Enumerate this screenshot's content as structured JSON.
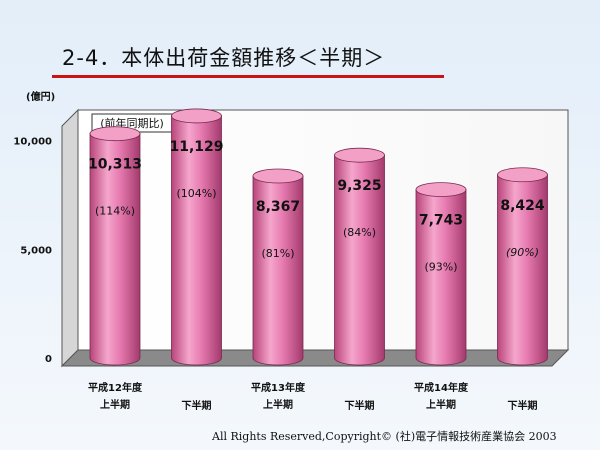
{
  "title": "2-4．本体出荷金額推移＜半期＞",
  "footer": "All Rights Reserved,Copyright© (社)電子情報技術産業協会  2003",
  "chart_data": {
    "type": "bar",
    "style": "3d-cylinder",
    "ylabel": "(億円)",
    "ylim": [
      0,
      12000
    ],
    "yticks": [
      "0",
      "5,000",
      "10,000"
    ],
    "ytick_values": [
      0,
      5000,
      10000
    ],
    "legend_box": "(前年同期比)",
    "grid": false,
    "bar_color": "#e67ab0",
    "categories": [
      [
        "平成12年度",
        "上半期"
      ],
      [
        "下半期"
      ],
      [
        "平成13年度",
        "上半期"
      ],
      [
        "下半期"
      ],
      [
        "平成14年度",
        "上半期"
      ],
      [
        "下半期"
      ]
    ],
    "values": [
      10313,
      11129,
      8367,
      9325,
      7743,
      8424
    ],
    "value_labels": [
      "10,313",
      "11,129",
      "8,367",
      "9,325",
      "7,743",
      "8,424"
    ],
    "percent_labels": [
      "(114%)",
      "(104%)",
      "(81%)",
      "(84%)",
      "(93%)",
      "(90%)"
    ]
  }
}
